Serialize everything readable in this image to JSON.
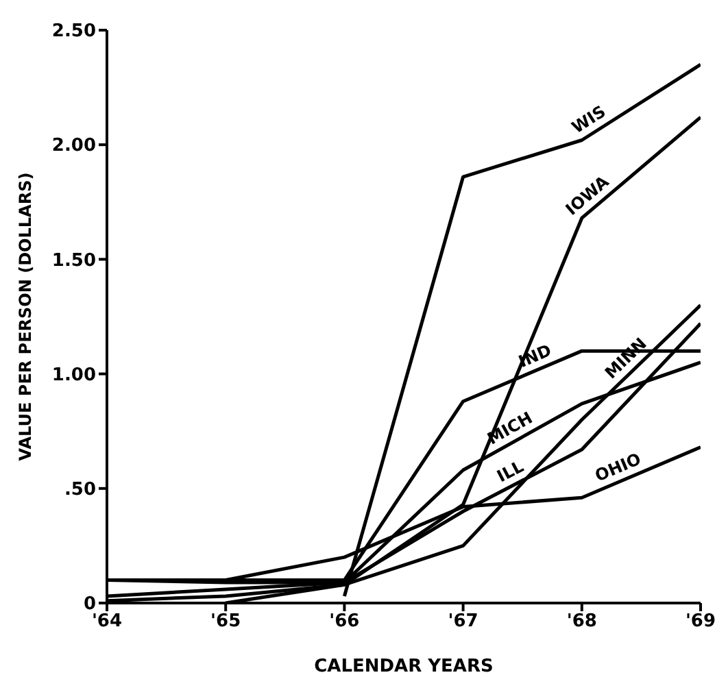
{
  "chart_data": {
    "type": "line",
    "xlabel": "CALENDAR YEARS",
    "ylabel": "VALUE PER PERSON (DOLLARS)",
    "x": [
      1964,
      1965,
      1966,
      1967,
      1968,
      1969
    ],
    "xlim": [
      1964,
      1969
    ],
    "xticks": [
      {
        "value": 1964,
        "label": "'64"
      },
      {
        "value": 1965,
        "label": "'65"
      },
      {
        "value": 1966,
        "label": "'66"
      },
      {
        "value": 1967,
        "label": "'67"
      },
      {
        "value": 1968,
        "label": "'68"
      },
      {
        "value": 1969,
        "label": "'69"
      }
    ],
    "ylim": [
      0,
      2.5
    ],
    "yticks": [
      0,
      {
        "value": 0.5,
        "label": ".50"
      },
      {
        "value": 1,
        "label": "1.00"
      },
      {
        "value": 1.5,
        "label": "1.50"
      },
      {
        "value": 2,
        "label": "2.00"
      },
      {
        "value": 2.5,
        "label": "2.50"
      }
    ],
    "grid": false,
    "legend": false,
    "marker": "none",
    "line_style": "solid",
    "series": [
      {
        "name": "WIS",
        "color": "#000000",
        "values": [
          null,
          null,
          0.03,
          1.86,
          2.02,
          2.35
        ]
      },
      {
        "name": "IOWA",
        "color": "#000000",
        "values": [
          null,
          0.0,
          0.08,
          0.43,
          1.68,
          2.12
        ]
      },
      {
        "name": "MINN",
        "color": "#000000",
        "values": [
          0.01,
          0.03,
          0.08,
          0.25,
          0.8,
          1.3
        ]
      },
      {
        "name": "IND",
        "color": "#000000",
        "values": [
          0.1,
          0.1,
          0.1,
          0.88,
          1.1,
          1.1
        ]
      },
      {
        "name": "MICH",
        "color": "#000000",
        "values": [
          0.1,
          0.09,
          0.09,
          0.58,
          0.87,
          1.05
        ]
      },
      {
        "name": "ILL",
        "color": "#000000",
        "values": [
          0.03,
          0.06,
          0.09,
          0.4,
          0.67,
          1.22
        ]
      },
      {
        "name": "OHIO",
        "color": "#000000",
        "values": [
          0.1,
          0.1,
          0.2,
          0.42,
          0.46,
          0.68
        ]
      }
    ]
  }
}
